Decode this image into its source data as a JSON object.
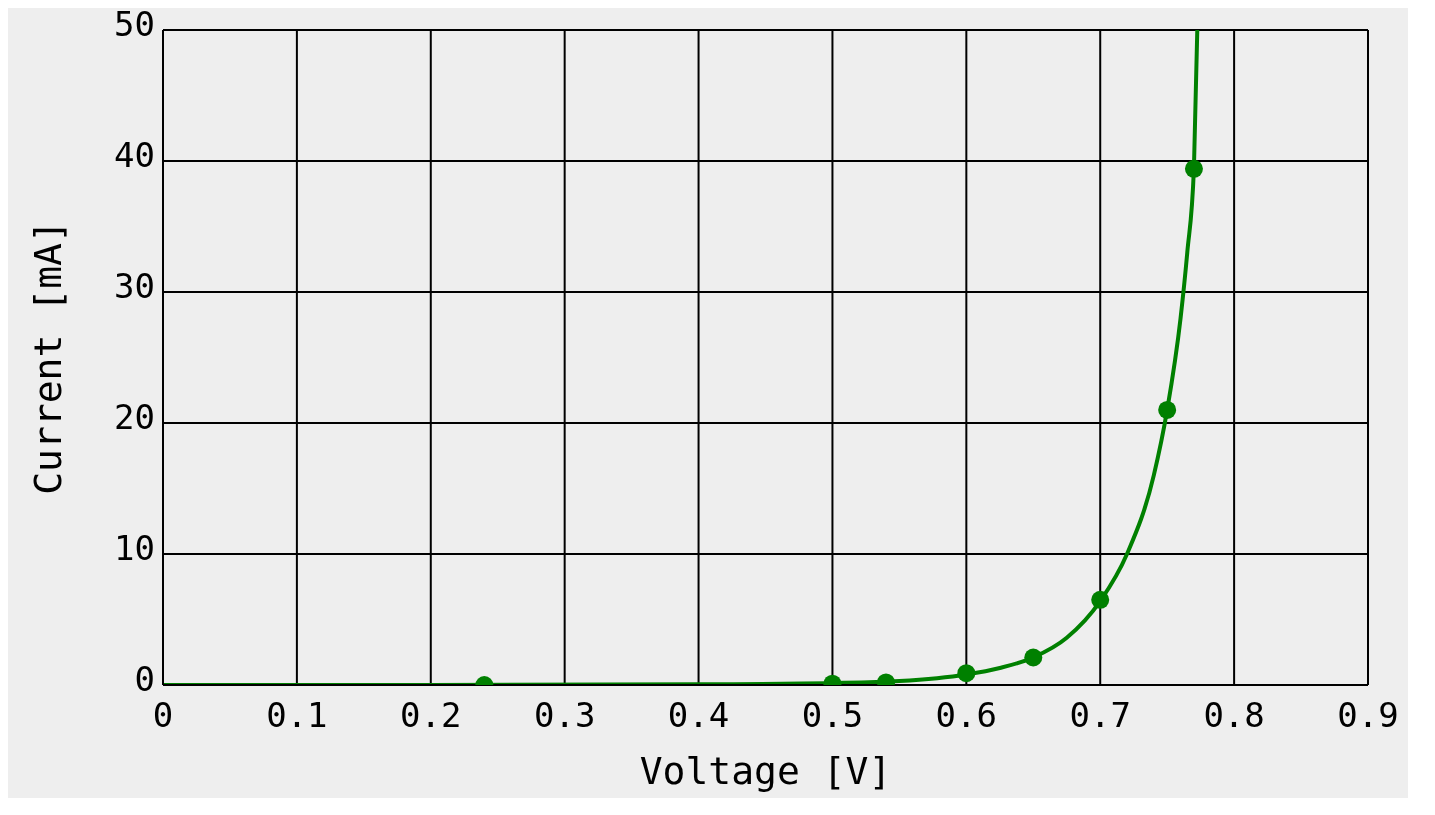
{
  "chart_data": {
    "type": "line",
    "xlabel": "Voltage [V]",
    "ylabel": "Current [mA]",
    "xlim": [
      0,
      0.9
    ],
    "xticks": [
      0,
      0.1,
      0.2,
      0.3,
      0.4,
      0.5,
      0.6,
      0.7,
      0.8,
      0.9
    ],
    "ylim": [
      0,
      50
    ],
    "yticks": [
      0,
      10,
      20,
      30,
      40,
      50
    ],
    "grid": true,
    "series": [
      {
        "color": "#008000",
        "marker": "none",
        "x": [
          0,
          0.2,
          0.4,
          0.5,
          0.55,
          0.6,
          0.625,
          0.65,
          0.675,
          0.7,
          0.72,
          0.74,
          0.75,
          0.76,
          0.765,
          0.77,
          0.7725
        ],
        "values": [
          0,
          0,
          0.05,
          0.15,
          0.3,
          0.8,
          1.3,
          2.1,
          3.6,
          6.4,
          10,
          16,
          21,
          28,
          33,
          39.5,
          50
        ]
      },
      {
        "type": "scatter",
        "color": "#008000",
        "marker": "circle",
        "x": [
          0.24,
          0.5,
          0.54,
          0.6,
          0.65,
          0.7,
          0.75,
          0.77
        ],
        "values": [
          0,
          0.1,
          0.2,
          0.9,
          2.1,
          6.5,
          21,
          39.4
        ]
      }
    ]
  }
}
